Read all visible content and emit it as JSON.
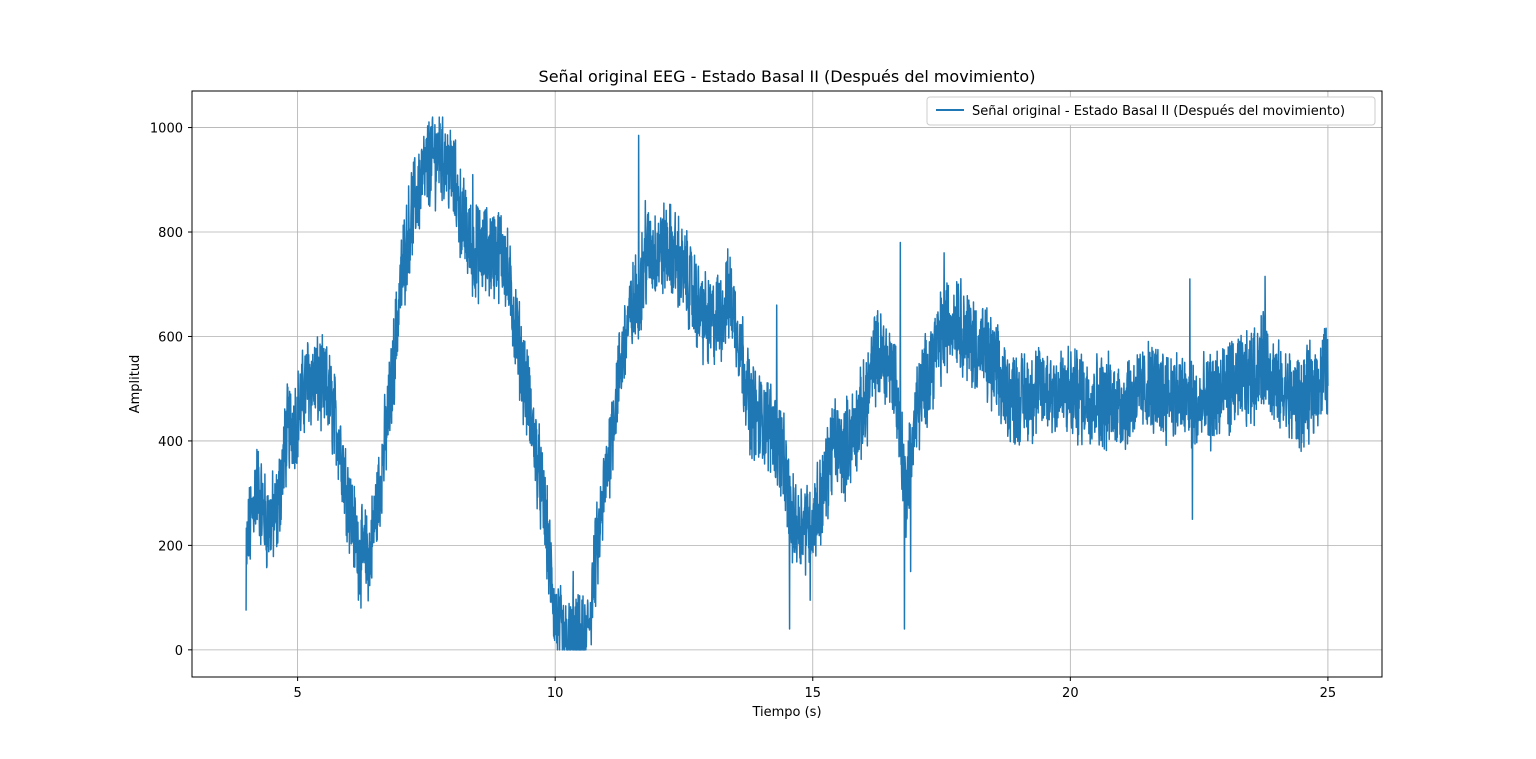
{
  "chart_data": {
    "type": "line",
    "title": "Señal original EEG - Estado Basal II (Después del movimiento)",
    "xlabel": "Tiempo (s)",
    "ylabel": "Amplitud",
    "xlim": [
      2.95,
      26.05
    ],
    "ylim": [
      -52,
      1070
    ],
    "xticks": [
      5,
      10,
      15,
      20,
      25
    ],
    "yticks": [
      0,
      200,
      400,
      600,
      800,
      1000
    ],
    "grid": true,
    "legend_position": "top-right",
    "series": [
      {
        "name": "Señal original - Estado Basal II (Después del movimiento)",
        "color": "#1f77b4",
        "envelope": [
          [
            4.0,
            180
          ],
          [
            4.2,
            320
          ],
          [
            4.4,
            240
          ],
          [
            4.6,
            260
          ],
          [
            4.8,
            420
          ],
          [
            5.0,
            450
          ],
          [
            5.2,
            520
          ],
          [
            5.4,
            510
          ],
          [
            5.6,
            490
          ],
          [
            5.8,
            410
          ],
          [
            6.0,
            280
          ],
          [
            6.2,
            180
          ],
          [
            6.4,
            180
          ],
          [
            6.6,
            320
          ],
          [
            6.8,
            480
          ],
          [
            7.0,
            700
          ],
          [
            7.2,
            830
          ],
          [
            7.4,
            900
          ],
          [
            7.6,
            940
          ],
          [
            7.8,
            950
          ],
          [
            8.0,
            910
          ],
          [
            8.2,
            820
          ],
          [
            8.4,
            760
          ],
          [
            8.6,
            760
          ],
          [
            8.8,
            760
          ],
          [
            9.0,
            760
          ],
          [
            9.2,
            640
          ],
          [
            9.4,
            520
          ],
          [
            9.6,
            400
          ],
          [
            9.8,
            260
          ],
          [
            10.0,
            60
          ],
          [
            10.2,
            10
          ],
          [
            10.4,
            10
          ],
          [
            10.6,
            10
          ],
          [
            10.8,
            180
          ],
          [
            11.0,
            340
          ],
          [
            11.2,
            500
          ],
          [
            11.4,
            620
          ],
          [
            11.6,
            680
          ],
          [
            11.8,
            760
          ],
          [
            12.0,
            760
          ],
          [
            12.2,
            770
          ],
          [
            12.4,
            740
          ],
          [
            12.6,
            700
          ],
          [
            12.8,
            650
          ],
          [
            13.0,
            620
          ],
          [
            13.2,
            640
          ],
          [
            13.4,
            680
          ],
          [
            13.6,
            580
          ],
          [
            13.8,
            460
          ],
          [
            14.0,
            440
          ],
          [
            14.2,
            430
          ],
          [
            14.4,
            380
          ],
          [
            14.6,
            240
          ],
          [
            14.8,
            240
          ],
          [
            15.0,
            250
          ],
          [
            15.2,
            300
          ],
          [
            15.4,
            400
          ],
          [
            15.6,
            380
          ],
          [
            15.8,
            420
          ],
          [
            16.0,
            460
          ],
          [
            16.2,
            560
          ],
          [
            16.4,
            560
          ],
          [
            16.6,
            520
          ],
          [
            16.8,
            300
          ],
          [
            17.0,
            450
          ],
          [
            17.2,
            520
          ],
          [
            17.4,
            580
          ],
          [
            17.6,
            620
          ],
          [
            17.8,
            640
          ],
          [
            18.0,
            600
          ],
          [
            18.2,
            580
          ],
          [
            18.4,
            560
          ],
          [
            18.6,
            520
          ],
          [
            18.8,
            490
          ],
          [
            19.0,
            480
          ],
          [
            19.5,
            500
          ],
          [
            20.0,
            490
          ],
          [
            20.5,
            480
          ],
          [
            21.0,
            470
          ],
          [
            21.5,
            500
          ],
          [
            22.0,
            490
          ],
          [
            22.5,
            460
          ],
          [
            23.0,
            500
          ],
          [
            23.5,
            520
          ],
          [
            23.8,
            560
          ],
          [
            24.0,
            500
          ],
          [
            24.5,
            470
          ],
          [
            25.0,
            540
          ]
        ],
        "spikes": [
          [
            4.0,
            75
          ],
          [
            4.05,
            180
          ],
          [
            11.62,
            985
          ],
          [
            11.75,
            860
          ],
          [
            14.3,
            660
          ],
          [
            14.55,
            40
          ],
          [
            14.95,
            95
          ],
          [
            16.7,
            780
          ],
          [
            16.78,
            40
          ],
          [
            16.9,
            150
          ],
          [
            17.55,
            760
          ],
          [
            22.32,
            710
          ],
          [
            22.37,
            250
          ],
          [
            23.78,
            715
          ],
          [
            10.35,
            150
          ],
          [
            7.75,
            1020
          ],
          [
            8.4,
            910
          ],
          [
            9.5,
            540
          ]
        ]
      }
    ]
  }
}
